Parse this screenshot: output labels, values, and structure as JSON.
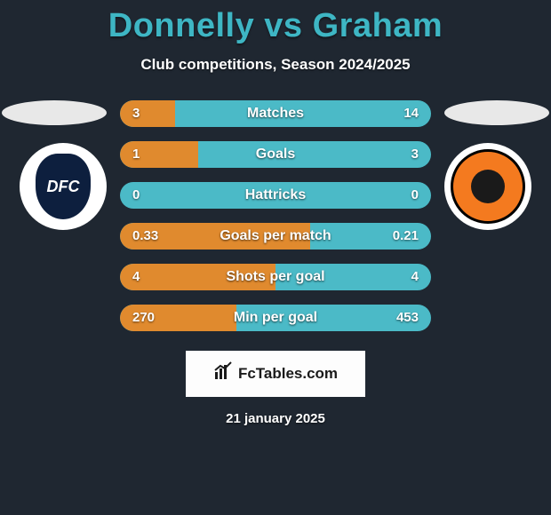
{
  "title": "Donnelly vs Graham",
  "subtitle": "Club competitions, Season 2024/2025",
  "colors": {
    "background": "#1f2731",
    "title": "#3eb6c4",
    "bar_right": "#4bbac7",
    "bar_left": "#e08a2e",
    "brand_bg": "#fdfdfd"
  },
  "left_team": {
    "badge_initials": "DFC",
    "badge_bg": "#0d1f3e"
  },
  "right_team": {
    "badge_bg": "#f47a1f"
  },
  "stats": [
    {
      "label": "Matches",
      "left_val": "3",
      "right_val": "14",
      "left_pct": 17.6
    },
    {
      "label": "Goals",
      "left_val": "1",
      "right_val": "3",
      "left_pct": 25.0
    },
    {
      "label": "Hattricks",
      "left_val": "0",
      "right_val": "0",
      "left_pct": 0.0
    },
    {
      "label": "Goals per match",
      "left_val": "0.33",
      "right_val": "0.21",
      "left_pct": 61.1
    },
    {
      "label": "Shots per goal",
      "left_val": "4",
      "right_val": "4",
      "left_pct": 50.0
    },
    {
      "label": "Min per goal",
      "left_val": "270",
      "right_val": "453",
      "left_pct": 37.3
    }
  ],
  "brand": "FcTables.com",
  "date": "21 january 2025"
}
